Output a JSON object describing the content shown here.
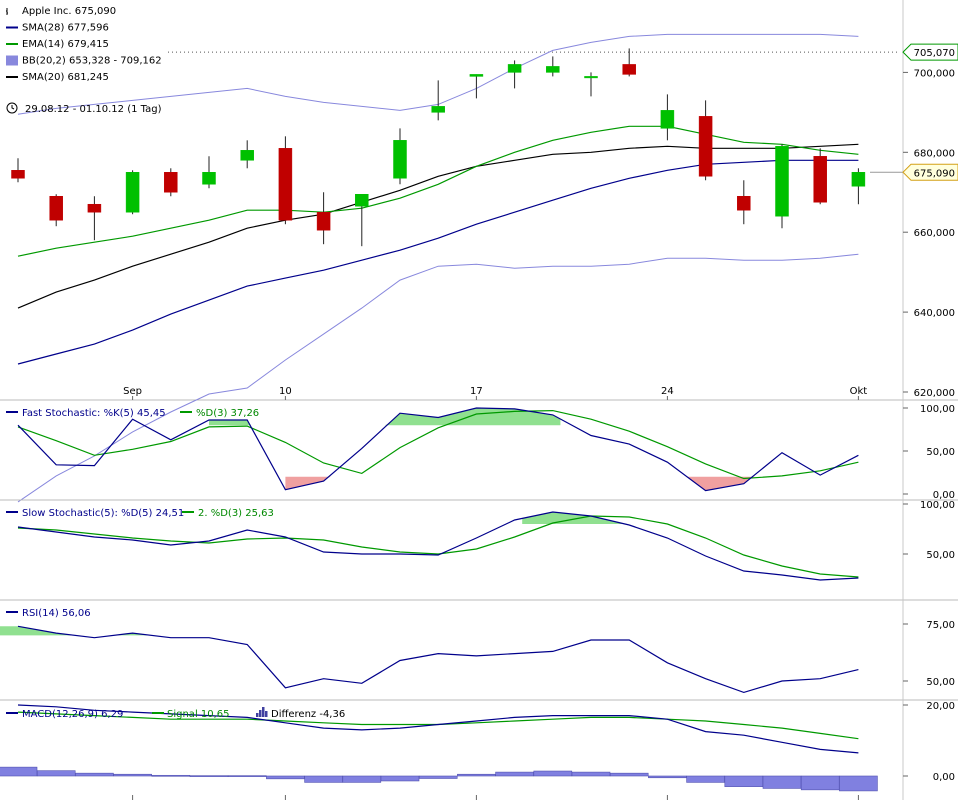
{
  "chart_data": {
    "type": "candlestick",
    "symbol": "Apple Inc.",
    "range_text": "29.08.12 - 01.10.12 (1 Tag)",
    "current_price_label": "675,090",
    "reference_line_label": "705,070",
    "reference_line_value": 705.07,
    "x_tick_labels": [
      {
        "index": 3,
        "label": "Sep"
      },
      {
        "index": 7,
        "label": "10"
      },
      {
        "index": 12,
        "label": "17"
      },
      {
        "index": 17,
        "label": "24"
      },
      {
        "index": 22,
        "label": "Okt"
      }
    ],
    "colors": {
      "up": "#00c000",
      "down": "#c00000",
      "sma28": "#00008b",
      "ema14": "#009900",
      "bb": "#8888dd",
      "sma20": "#000000",
      "signal_box_fill": "#ffffdd",
      "signal_box_stroke": "#d4a017",
      "ref_box_stroke": "#009900",
      "zone_green": "#90e090",
      "zone_red": "#f0a0a0",
      "hist": "#8080e0"
    },
    "price_panel": {
      "ylim": [
        620,
        720
      ],
      "y_ticks": [
        {
          "v": 620,
          "label": "620,000"
        },
        {
          "v": 640,
          "label": "640,000"
        },
        {
          "v": 660,
          "label": "660,000"
        },
        {
          "v": 680,
          "label": "680,000"
        },
        {
          "v": 700,
          "label": "700,000"
        }
      ],
      "legend": [
        {
          "text": "Apple Inc. 675,090",
          "key": "symbol"
        },
        {
          "text": "SMA(28) 677,596",
          "key": "sma28"
        },
        {
          "text": "EMA(14) 679,415",
          "key": "ema14"
        },
        {
          "text": "BB(20,2) 653,328 - 709,162",
          "key": "bb"
        },
        {
          "text": "SMA(20) 681,245",
          "key": "sma20"
        }
      ],
      "candles": [
        {
          "o": 675.5,
          "h": 678.5,
          "l": 672.5,
          "c": 673.5
        },
        {
          "o": 669.0,
          "h": 669.5,
          "l": 661.5,
          "c": 663.0
        },
        {
          "o": 667.0,
          "h": 669.0,
          "l": 658.0,
          "c": 665.0
        },
        {
          "o": 665.0,
          "h": 675.5,
          "l": 664.5,
          "c": 675.0
        },
        {
          "o": 675.0,
          "h": 676.0,
          "l": 669.0,
          "c": 670.0
        },
        {
          "o": 672.0,
          "h": 679.0,
          "l": 671.0,
          "c": 675.0
        },
        {
          "o": 678.0,
          "h": 683.0,
          "l": 676.0,
          "c": 680.5
        },
        {
          "o": 681.0,
          "h": 684.0,
          "l": 662.0,
          "c": 663.0
        },
        {
          "o": 665.0,
          "h": 670.0,
          "l": 657.0,
          "c": 660.5
        },
        {
          "o": 666.5,
          "h": 669.5,
          "l": 656.5,
          "c": 669.5
        },
        {
          "o": 673.5,
          "h": 686.0,
          "l": 672.0,
          "c": 683.0
        },
        {
          "o": 690.0,
          "h": 698.0,
          "l": 688.0,
          "c": 691.5
        },
        {
          "o": 699.0,
          "h": 699.5,
          "l": 693.5,
          "c": 699.5
        },
        {
          "o": 700.0,
          "h": 703.0,
          "l": 696.0,
          "c": 702.0
        },
        {
          "o": 700.0,
          "h": 704.0,
          "l": 699.0,
          "c": 701.5
        },
        {
          "o": 699.0,
          "h": 700.0,
          "l": 694.0,
          "c": 699.0
        },
        {
          "o": 702.0,
          "h": 706.0,
          "l": 699.0,
          "c": 699.5
        },
        {
          "o": 686.0,
          "h": 694.5,
          "l": 683.0,
          "c": 690.5
        },
        {
          "o": 689.0,
          "h": 693.0,
          "l": 673.0,
          "c": 674.0
        },
        {
          "o": 669.0,
          "h": 673.0,
          "l": 662.0,
          "c": 665.5
        },
        {
          "o": 664.0,
          "h": 682.0,
          "l": 661.0,
          "c": 681.5
        },
        {
          "o": 679.0,
          "h": 681.0,
          "l": 667.0,
          "c": 667.5
        },
        {
          "o": 671.5,
          "h": 676.0,
          "l": 667.0,
          "c": 675.0
        }
      ],
      "sma28": [
        627.0,
        629.5,
        632.0,
        635.5,
        639.5,
        643.0,
        646.5,
        648.5,
        650.5,
        653.0,
        655.5,
        658.5,
        662.0,
        665.0,
        668.0,
        671.0,
        673.5,
        675.5,
        677.0,
        677.5,
        678.0,
        678.0,
        678.0
      ],
      "ema14": [
        654.0,
        656.0,
        657.5,
        659.0,
        661.0,
        663.0,
        665.5,
        665.5,
        665.0,
        666.0,
        668.5,
        672.0,
        676.5,
        680.0,
        683.0,
        685.0,
        686.5,
        686.5,
        684.5,
        682.5,
        682.0,
        680.5,
        679.5
      ],
      "sma20": [
        641.0,
        645.0,
        648.0,
        651.5,
        654.5,
        657.5,
        661.0,
        663.0,
        664.5,
        667.5,
        670.5,
        674.0,
        676.5,
        678.0,
        679.5,
        680.0,
        681.0,
        681.5,
        681.0,
        681.0,
        681.0,
        681.5,
        682.0
      ],
      "bb_upper": [
        689.5,
        691.0,
        692.0,
        693.0,
        694.0,
        695.0,
        696.0,
        694.0,
        692.5,
        691.5,
        690.5,
        692.0,
        696.0,
        701.0,
        705.5,
        707.5,
        709.0,
        709.5,
        709.5,
        709.5,
        709.5,
        709.5,
        709.0
      ],
      "bb_lower": [
        592.5,
        599.0,
        604.0,
        610.0,
        615.0,
        619.5,
        621.0,
        628.0,
        634.5,
        641.0,
        648.0,
        651.5,
        652.0,
        651.0,
        651.5,
        651.5,
        652.0,
        653.5,
        653.5,
        653.0,
        653.0,
        653.5,
        654.5
      ]
    },
    "fast_stoch": {
      "legend": [
        {
          "text": "Fast Stochastic: %K(5) 45,45",
          "key": "k"
        },
        {
          "text": "%D(3) 37,26",
          "key": "d"
        }
      ],
      "ylim": [
        0,
        100
      ],
      "y_ticks": [
        {
          "v": 0,
          "label": "0,00"
        },
        {
          "v": 50,
          "label": "50,00"
        },
        {
          "v": 100,
          "label": "100,00"
        }
      ],
      "k": [
        80,
        34,
        33,
        87,
        63,
        86,
        86,
        5,
        15,
        53,
        94,
        89,
        100,
        99,
        92,
        68,
        58,
        37,
        4,
        12,
        48,
        22,
        45
      ],
      "d": [
        78,
        62,
        45,
        52,
        61,
        78,
        79,
        60,
        36,
        24,
        54,
        77,
        93,
        96,
        97,
        87,
        73,
        55,
        35,
        18,
        21,
        27,
        37
      ],
      "green_zones": [
        {
          "from": 5,
          "to": 6.5
        },
        {
          "from": 9.2,
          "to": 14.2
        },
        {
          "from": 18.7,
          "to": 19.7
        }
      ],
      "red_zones": [
        {
          "from": 7,
          "to": 8.2
        },
        {
          "from": 17.5,
          "to": 19.3
        }
      ]
    },
    "slow_stoch": {
      "legend": [
        {
          "text": "Slow Stochastic(5): %D(5) 24,51",
          "key": "d"
        },
        {
          "text": "2. %D(3) 25,63",
          "key": "d2"
        }
      ],
      "ylim": [
        15,
        100
      ],
      "y_ticks": [
        {
          "v": 50,
          "label": "50,00"
        },
        {
          "v": 100,
          "label": "100,00"
        }
      ],
      "d": [
        77,
        72,
        67,
        64,
        59,
        63,
        74,
        67,
        52,
        50,
        50,
        49,
        66,
        84,
        92,
        88,
        79,
        66,
        48,
        33,
        29,
        24,
        26
      ],
      "d2": [
        76,
        74,
        70,
        66,
        63,
        61,
        65,
        66,
        64,
        57,
        52,
        50,
        55,
        67,
        81,
        88,
        87,
        80,
        66,
        49,
        38,
        30,
        27
      ],
      "green_zones": [
        {
          "from": 13.2,
          "to": 16
        }
      ]
    },
    "rsi": {
      "legend": [
        {
          "text": "RSI(14) 56,06",
          "key": "rsi"
        }
      ],
      "ylim": [
        43,
        82
      ],
      "y_ticks": [
        {
          "v": 50,
          "label": "50,00"
        },
        {
          "v": 75,
          "label": "75,00"
        }
      ],
      "values": [
        74,
        71,
        69,
        71,
        69,
        69,
        66,
        47,
        51,
        49,
        59,
        62,
        61,
        62,
        63,
        68,
        68,
        58,
        51,
        45,
        50,
        51,
        55
      ],
      "green_zones": [
        {
          "from": -1,
          "to": 3.5
        }
      ]
    },
    "macd": {
      "legend": [
        {
          "text": "MACD(12,26,9) 6,29",
          "key": "macd"
        },
        {
          "text": "Signal 10,65",
          "key": "signal"
        },
        {
          "text": "Differenz -4,36",
          "key": "hist"
        }
      ],
      "ylim": [
        -6,
        22
      ],
      "y_ticks": [
        {
          "v": 0,
          "label": "0,00"
        },
        {
          "v": 20,
          "label": "20,00"
        }
      ],
      "macd": [
        20,
        19.5,
        18.5,
        18,
        17.5,
        17,
        16.5,
        15,
        13.5,
        13,
        13.5,
        14.5,
        15.5,
        16.5,
        17,
        17,
        17,
        16,
        12.5,
        11.5,
        9.5,
        7.5,
        6.5
      ],
      "signal": [
        18,
        17.5,
        17,
        16.5,
        16,
        16,
        16,
        15.5,
        15,
        14.5,
        14.5,
        14.5,
        15,
        15.5,
        16,
        16.5,
        16.5,
        16,
        15.5,
        14.5,
        13.5,
        12,
        10.5
      ],
      "hist": [
        2.5,
        1.5,
        0.8,
        0.5,
        0.2,
        0.1,
        0.1,
        -0.8,
        -1.8,
        -1.8,
        -1.4,
        -0.7,
        0.5,
        1.1,
        1.4,
        1.1,
        0.8,
        -0.5,
        -1.8,
        -3.0,
        -3.5,
        -3.9,
        -4.2
      ]
    }
  }
}
